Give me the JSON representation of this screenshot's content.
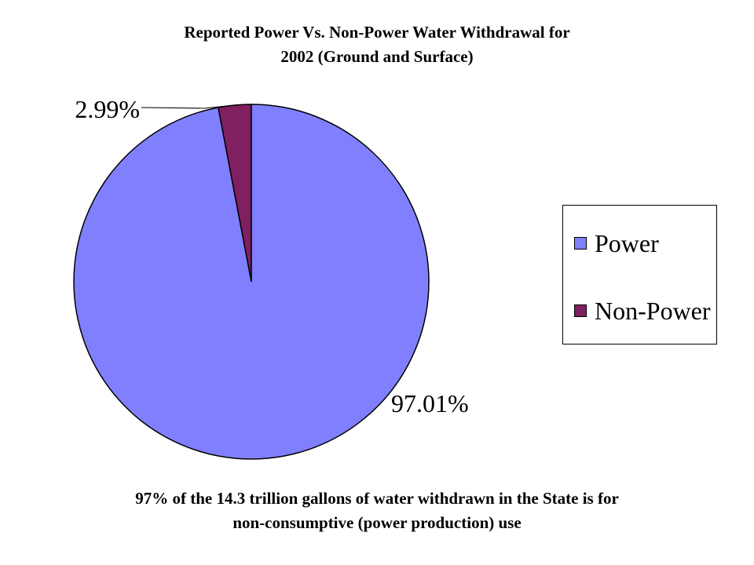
{
  "chart_data": {
    "type": "pie",
    "title_lines": [
      "Reported Power Vs. Non-Power Water Withdrawal for",
      "2002 (Ground and Surface)"
    ],
    "slices": [
      {
        "label": "Power",
        "value": 97.01,
        "data_label": "97.01%",
        "color": "#8080FF"
      },
      {
        "label": "Non-Power",
        "value": 2.99,
        "data_label": "2.99%",
        "color": "#802060"
      }
    ],
    "legend_position": "right"
  },
  "footer": {
    "lines": [
      "97% of the 14.3 trillion gallons of water withdrawn in the State is for",
      "non-consumptive (power production) use"
    ]
  }
}
